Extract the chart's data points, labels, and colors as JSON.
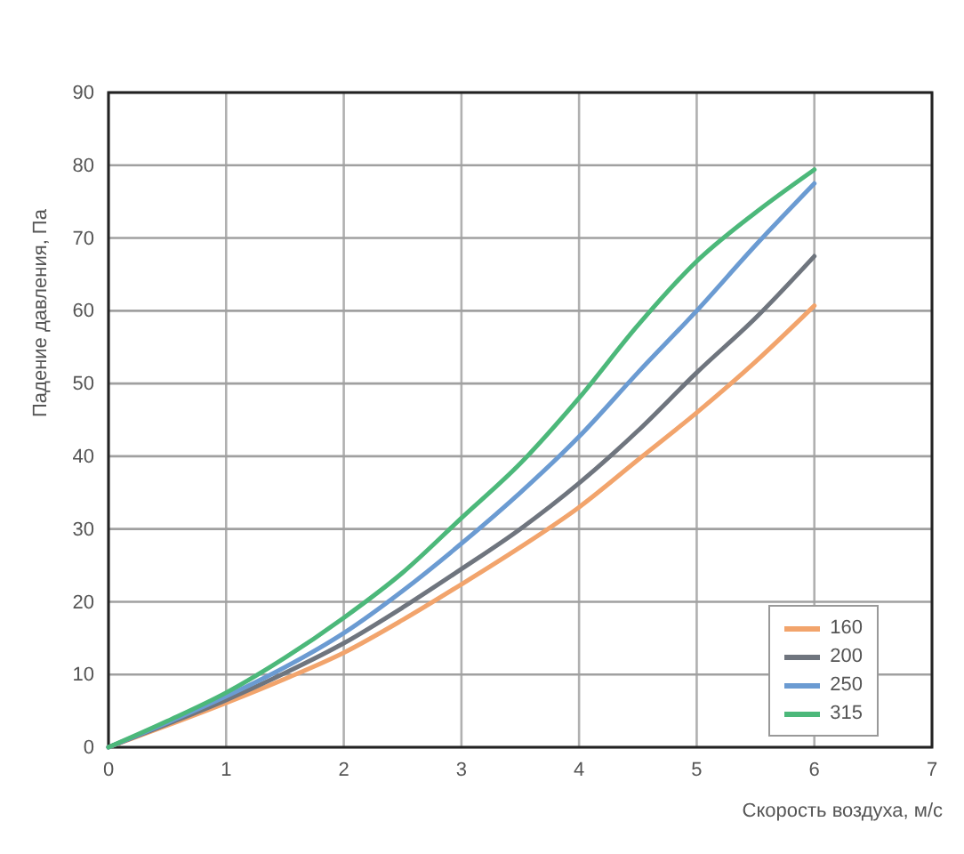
{
  "chart_data": {
    "type": "line",
    "xlabel": "Скорость воздуха, м/с",
    "ylabel": "Падение давления, Па",
    "x": [
      0,
      0.5,
      1,
      1.5,
      2,
      2.5,
      3,
      3.5,
      4,
      4.5,
      5,
      5.5,
      6
    ],
    "series": [
      {
        "name": "160",
        "color": "#f2a46c",
        "values": [
          0,
          3,
          6.1,
          9.4,
          13,
          17.5,
          22.4,
          27.5,
          33,
          39.5,
          46,
          53,
          60.7
        ]
      },
      {
        "name": "200",
        "color": "#6f757e",
        "values": [
          0,
          3.2,
          6.5,
          10.2,
          14.3,
          19.2,
          24.5,
          30,
          36.3,
          43.5,
          51.5,
          59,
          67.5
        ]
      },
      {
        "name": "250",
        "color": "#6b9bd2",
        "values": [
          0,
          3.4,
          7,
          11,
          15.7,
          21.5,
          28,
          35,
          42.7,
          51.5,
          60,
          69,
          77.5
        ]
      },
      {
        "name": "315",
        "color": "#4cb87a",
        "values": [
          0,
          3.6,
          7.5,
          12.3,
          17.8,
          24,
          31.5,
          39,
          48,
          58,
          66.8,
          73.5,
          79.4
        ]
      }
    ],
    "xlim": [
      0,
      7
    ],
    "xticks": [
      0,
      1,
      2,
      3,
      4,
      5,
      6,
      7
    ],
    "ylim": [
      0,
      90
    ],
    "yticks": [
      0,
      10,
      20,
      30,
      40,
      50,
      60,
      70,
      80,
      90
    ],
    "grid": true,
    "legend": "bottom right",
    "marker": "none",
    "line_style": "solid"
  }
}
